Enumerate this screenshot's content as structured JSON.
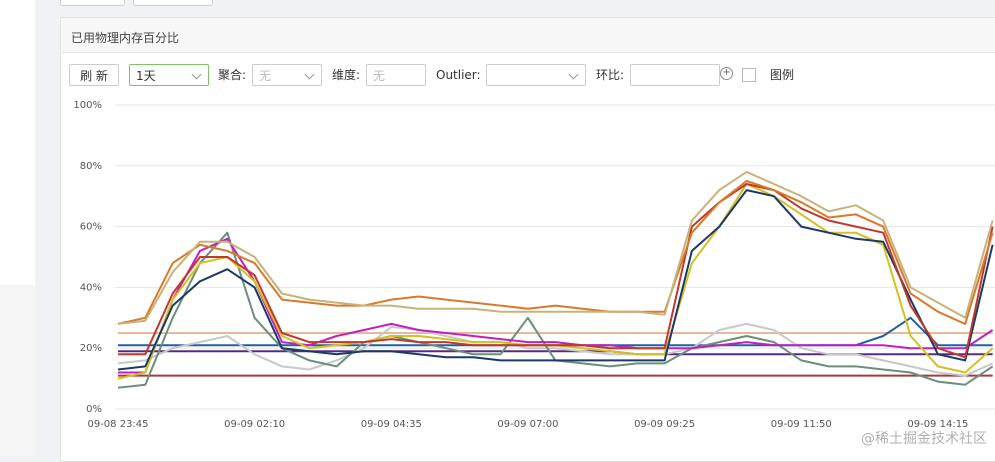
{
  "panel_title": "已用物理内存百分比",
  "toolbar": {
    "refresh": "刷 新",
    "range": "1天",
    "agg_label": "聚合:",
    "agg_value": "无",
    "dim_label": "维度:",
    "dim_value": "无",
    "outlier_label": "Outlier:",
    "ratio_label": "环比:",
    "legend_label": "图例"
  },
  "watermark": "@稀土掘金技术社区",
  "chart_data": {
    "type": "line",
    "categories": [
      "09-08 23:45",
      null,
      null,
      null,
      null,
      "09-09 02:10",
      null,
      null,
      null,
      null,
      "09-09 04:35",
      null,
      null,
      null,
      null,
      "09-09 07:00",
      null,
      null,
      null,
      null,
      "09-09 09:25",
      null,
      null,
      null,
      null,
      "09-09 11:50",
      null,
      null,
      null,
      null,
      "09-09 14:15",
      null,
      null
    ],
    "ylim": [
      0,
      100
    ],
    "yticks": [
      {
        "value": 0,
        "label": "0%"
      },
      {
        "value": 20,
        "label": "20%"
      },
      {
        "value": 40,
        "label": "40%"
      },
      {
        "value": 60,
        "label": "60%"
      },
      {
        "value": 80,
        "label": "80%"
      },
      {
        "value": 100,
        "label": "100%"
      }
    ],
    "grid": true,
    "series": [
      {
        "color": "#a83a34",
        "values": [
          11,
          11,
          11,
          11,
          11,
          11,
          11,
          11,
          11,
          11,
          11,
          11,
          11,
          11,
          11,
          11,
          11,
          11,
          11,
          11,
          11,
          11,
          11,
          11,
          11,
          11,
          11,
          11,
          11,
          11,
          11,
          11,
          11
        ]
      },
      {
        "color": "#e8b89a",
        "values": [
          25,
          25,
          25,
          25,
          25,
          25,
          25,
          25,
          25,
          25,
          25,
          25,
          25,
          25,
          25,
          25,
          25,
          25,
          25,
          25,
          25,
          25,
          25,
          25,
          25,
          25,
          25,
          25,
          25,
          25,
          25,
          25,
          25
        ]
      },
      {
        "color": "#5a2a80",
        "values": [
          19,
          19,
          19,
          19,
          19,
          19,
          19,
          19,
          19,
          19,
          19,
          19,
          19,
          19,
          19,
          19,
          19,
          19,
          19,
          18,
          18,
          18,
          18,
          18,
          18,
          18,
          18,
          18,
          18,
          18,
          18,
          18,
          18
        ]
      },
      {
        "color": "#2060a0",
        "values": [
          21,
          21,
          21,
          21,
          21,
          21,
          21,
          21,
          21,
          21,
          21,
          21,
          21,
          21,
          21,
          21,
          21,
          21,
          21,
          21,
          21,
          21,
          21,
          21,
          21,
          21,
          21,
          21,
          24,
          30,
          21,
          21,
          21
        ]
      },
      {
        "color": "#c8c8c8",
        "values": [
          15,
          16,
          20,
          22,
          24,
          18,
          14,
          13,
          16,
          20,
          27,
          26,
          24,
          22,
          22,
          20,
          20,
          19,
          18,
          18,
          18,
          20,
          26,
          28,
          26,
          20,
          18,
          18,
          16,
          14,
          12,
          11,
          15
        ]
      },
      {
        "color": "#6a8f7a",
        "values": [
          7,
          8,
          30,
          48,
          58,
          30,
          20,
          16,
          14,
          22,
          24,
          22,
          20,
          18,
          18,
          30,
          16,
          15,
          14,
          15,
          15,
          20,
          22,
          24,
          22,
          16,
          14,
          14,
          13,
          12,
          9,
          8,
          14
        ]
      },
      {
        "color": "#c020c0",
        "values": [
          12,
          12,
          36,
          52,
          56,
          42,
          22,
          21,
          24,
          26,
          28,
          26,
          25,
          24,
          23,
          22,
          22,
          21,
          21,
          20,
          20,
          20,
          21,
          22,
          21,
          21,
          21,
          21,
          21,
          20,
          20,
          20,
          26
        ]
      },
      {
        "color": "#d4c020",
        "values": [
          10,
          12,
          36,
          48,
          50,
          42,
          24,
          20,
          21,
          22,
          24,
          24,
          23,
          22,
          22,
          21,
          21,
          20,
          19,
          18,
          18,
          48,
          60,
          74,
          70,
          64,
          58,
          58,
          54,
          24,
          14,
          12,
          20
        ]
      },
      {
        "color": "#1a3a6b",
        "values": [
          13,
          14,
          34,
          42,
          46,
          40,
          20,
          19,
          18,
          19,
          19,
          18,
          17,
          17,
          16,
          16,
          16,
          16,
          16,
          16,
          16,
          52,
          60,
          72,
          70,
          60,
          58,
          56,
          55,
          36,
          18,
          16,
          54
        ]
      },
      {
        "color": "#c0392b",
        "values": [
          18,
          18,
          38,
          50,
          50,
          44,
          25,
          22,
          22,
          22,
          23,
          22,
          22,
          21,
          21,
          21,
          21,
          21,
          20,
          20,
          20,
          60,
          68,
          74,
          72,
          66,
          62,
          60,
          58,
          34,
          20,
          17,
          60
        ]
      },
      {
        "color": "#d97a2b",
        "values": [
          28,
          30,
          48,
          54,
          52,
          48,
          36,
          35,
          34,
          34,
          36,
          37,
          36,
          35,
          34,
          33,
          34,
          33,
          32,
          32,
          32,
          58,
          68,
          75,
          72,
          68,
          63,
          64,
          60,
          38,
          32,
          28,
          58
        ]
      },
      {
        "color": "#c8b27a",
        "values": [
          28,
          29,
          45,
          55,
          55,
          50,
          38,
          36,
          35,
          34,
          34,
          33,
          33,
          33,
          32,
          32,
          32,
          32,
          32,
          32,
          31,
          62,
          72,
          78,
          74,
          70,
          65,
          67,
          62,
          40,
          35,
          30,
          62
        ]
      }
    ]
  }
}
